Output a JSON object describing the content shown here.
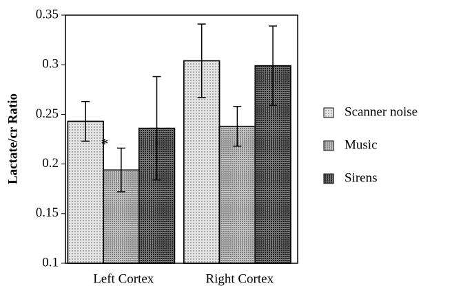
{
  "chart_data": {
    "type": "bar",
    "y_label": "Lactate/cr  Ratio",
    "categories": [
      "Left Cortex",
      "Right Cortex"
    ],
    "series": [
      {
        "name": "Scanner noise",
        "color": "#e4e4e4",
        "values": [
          0.243,
          0.304
        ],
        "errors": [
          0.02,
          0.037
        ]
      },
      {
        "name": "Music",
        "color": "#c4c4c4",
        "values": [
          0.194,
          0.238
        ],
        "errors": [
          0.022,
          0.02
        ]
      },
      {
        "name": "Sirens",
        "color": "#7a7a7a",
        "values": [
          0.236,
          0.299
        ],
        "errors": [
          0.052,
          0.04
        ]
      }
    ],
    "annotations": [
      {
        "text": "*",
        "category": 0,
        "series": 1
      }
    ],
    "ylim": [
      0.1,
      0.35
    ],
    "yticks": [
      0.1,
      0.15,
      0.2,
      0.25,
      0.3,
      0.35
    ]
  }
}
